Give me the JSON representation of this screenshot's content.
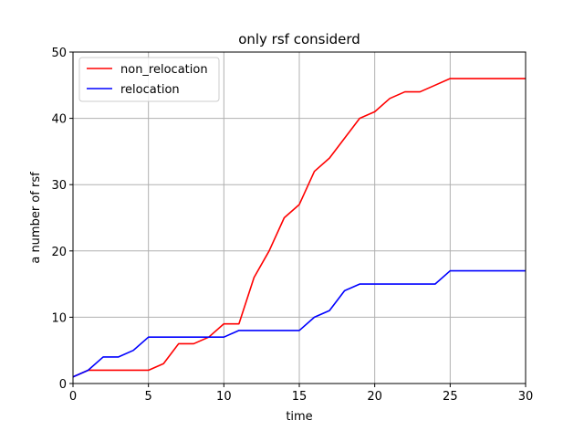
{
  "chart_data": {
    "type": "line",
    "title": "only rsf considerd",
    "xlabel": "time",
    "ylabel": "a number of rsf",
    "xlim": [
      0,
      30
    ],
    "ylim": [
      0,
      50
    ],
    "xticks": [
      0,
      5,
      10,
      15,
      20,
      25,
      30
    ],
    "yticks": [
      0,
      10,
      20,
      30,
      40,
      50
    ],
    "grid": true,
    "legend_position": "top-left",
    "x": [
      0,
      1,
      2,
      3,
      4,
      5,
      6,
      7,
      8,
      9,
      10,
      11,
      12,
      13,
      14,
      15,
      16,
      17,
      18,
      19,
      20,
      21,
      22,
      23,
      24,
      25,
      26,
      27,
      28,
      29,
      30
    ],
    "series": [
      {
        "name": "non_relocation",
        "color": "#ff0000",
        "values": [
          1,
          2,
          2,
          2,
          2,
          2,
          3,
          6,
          6,
          7,
          9,
          9,
          16,
          20,
          25,
          27,
          32,
          34,
          37,
          40,
          41,
          43,
          44,
          44,
          45,
          46,
          46,
          46,
          46,
          46,
          46
        ]
      },
      {
        "name": "relocation",
        "color": "#0000ff",
        "values": [
          1,
          2,
          4,
          4,
          5,
          7,
          7,
          7,
          7,
          7,
          7,
          8,
          8,
          8,
          8,
          8,
          10,
          11,
          14,
          15,
          15,
          15,
          15,
          15,
          15,
          17,
          17,
          17,
          17,
          17,
          17
        ]
      }
    ]
  }
}
